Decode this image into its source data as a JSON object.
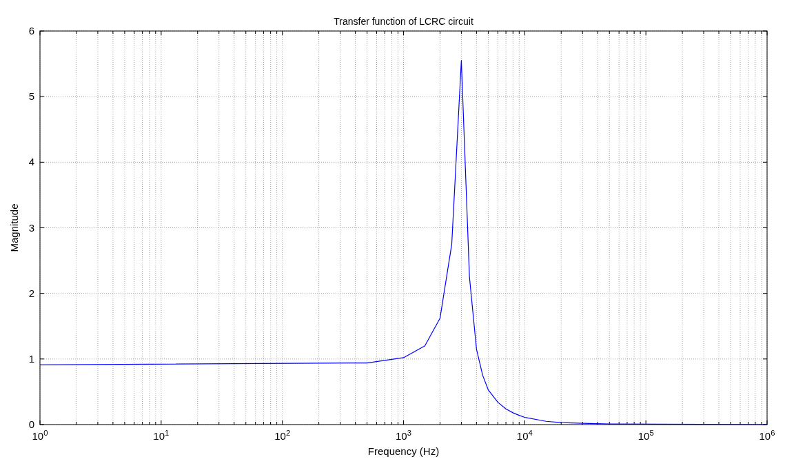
{
  "chart_data": {
    "type": "line",
    "title": "Transfer function of LCRC circuit",
    "xlabel": "Frequency (Hz)",
    "ylabel": "Magnitude",
    "log": "x",
    "grid": true,
    "x": [
      1,
      500,
      1000,
      1500,
      2000,
      2500,
      3000,
      3500,
      4000,
      4500,
      5000,
      6000,
      7000,
      8000,
      9000,
      10000,
      15000,
      20000,
      30000,
      50000,
      1000000
    ],
    "series": [
      {
        "color": "#0000ff",
        "values": [
          0.91,
          0.94,
          1.02,
          1.2,
          1.62,
          2.75,
          5.55,
          2.25,
          1.15,
          0.75,
          0.53,
          0.34,
          0.24,
          0.18,
          0.14,
          0.11,
          0.05,
          0.03,
          0.02,
          0.01,
          0.0
        ]
      }
    ],
    "xlim": [
      1,
      1000000
    ],
    "ylim": [
      0,
      6
    ],
    "yticks": [
      0,
      1,
      2,
      3,
      4,
      5,
      6
    ],
    "xticks": [
      {
        "value": 1,
        "label": "10$^{0}$"
      },
      {
        "value": 2,
        "label": null
      },
      {
        "value": 3,
        "label": null
      },
      {
        "value": 4,
        "label": null
      },
      {
        "value": 5,
        "label": null
      },
      {
        "value": 6,
        "label": null
      },
      {
        "value": 7,
        "label": null
      },
      {
        "value": 8,
        "label": null
      },
      {
        "value": 9,
        "label": null
      },
      {
        "value": 10,
        "label": "10$^{1}$"
      },
      {
        "value": 20,
        "label": null
      },
      {
        "value": 30,
        "label": null
      },
      {
        "value": 40,
        "label": null
      },
      {
        "value": 50,
        "label": null
      },
      {
        "value": 60,
        "label": null
      },
      {
        "value": 70,
        "label": null
      },
      {
        "value": 80,
        "label": null
      },
      {
        "value": 90,
        "label": null
      },
      {
        "value": 100,
        "label": "10$^{2}$"
      },
      {
        "value": 200,
        "label": null
      },
      {
        "value": 300,
        "label": null
      },
      {
        "value": 400,
        "label": null
      },
      {
        "value": 500,
        "label": null
      },
      {
        "value": 600,
        "label": null
      },
      {
        "value": 700,
        "label": null
      },
      {
        "value": 800,
        "label": null
      },
      {
        "value": 900,
        "label": null
      },
      {
        "value": 1000,
        "label": "10$^{3}$"
      },
      {
        "value": 2000,
        "label": null
      },
      {
        "value": 3000,
        "label": null
      },
      {
        "value": 4000,
        "label": null
      },
      {
        "value": 5000,
        "label": null
      },
      {
        "value": 6000,
        "label": null
      },
      {
        "value": 7000,
        "label": null
      },
      {
        "value": 8000,
        "label": null
      },
      {
        "value": 9000,
        "label": null
      },
      {
        "value": 10000,
        "label": "10$^{4}$"
      },
      {
        "value": 20000,
        "label": null
      },
      {
        "value": 30000,
        "label": null
      },
      {
        "value": 40000,
        "label": null
      },
      {
        "value": 50000,
        "label": null
      },
      {
        "value": 60000,
        "label": null
      },
      {
        "value": 70000,
        "label": null
      },
      {
        "value": 80000,
        "label": null
      },
      {
        "value": 90000,
        "label": null
      },
      {
        "value": 100000,
        "label": "10$^{5}$"
      },
      {
        "value": 200000,
        "label": null
      },
      {
        "value": 300000,
        "label": null
      },
      {
        "value": 400000,
        "label": null
      },
      {
        "value": 500000,
        "label": null
      },
      {
        "value": 600000,
        "label": null
      },
      {
        "value": 700000,
        "label": null
      },
      {
        "value": 800000,
        "label": null
      },
      {
        "value": 900000,
        "label": null
      },
      {
        "value": 1000000,
        "label": "10$^{6}$"
      }
    ]
  }
}
